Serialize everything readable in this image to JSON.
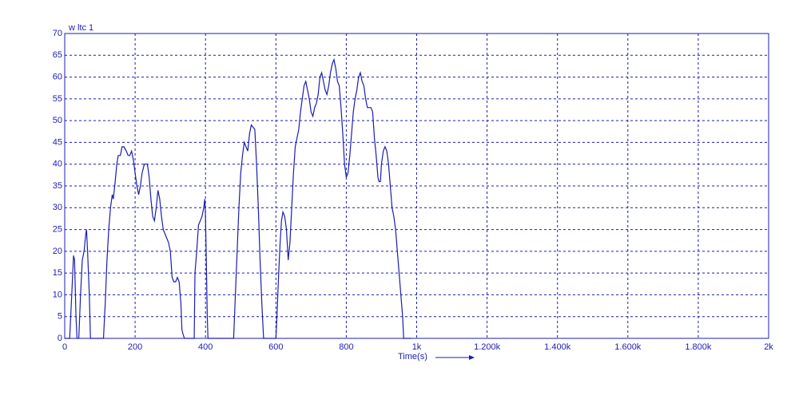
{
  "chart_data": {
    "type": "line",
    "title": "w ltc 1",
    "xlabel": "Time(s)",
    "x": [
      0,
      14,
      20,
      25,
      28,
      32,
      35,
      40,
      45,
      50,
      55,
      60,
      62,
      65,
      70,
      73,
      110,
      115,
      120,
      125,
      130,
      135,
      138,
      142,
      148,
      152,
      158,
      163,
      168,
      175,
      180,
      185,
      190,
      195,
      200,
      205,
      210,
      215,
      220,
      226,
      235,
      240,
      245,
      250,
      255,
      260,
      265,
      270,
      275,
      280,
      285,
      290,
      295,
      300,
      305,
      310,
      315,
      320,
      325,
      330,
      333,
      336,
      340,
      354,
      368,
      370,
      375,
      380,
      385,
      390,
      395,
      398,
      400,
      403,
      405,
      407,
      480,
      485,
      490,
      495,
      500,
      505,
      510,
      515,
      520,
      525,
      530,
      540,
      545,
      550,
      555,
      560,
      565,
      600,
      603,
      608,
      612,
      616,
      620,
      625,
      630,
      635,
      640,
      645,
      650,
      655,
      660,
      665,
      670,
      675,
      680,
      685,
      690,
      695,
      700,
      705,
      710,
      715,
      720,
      725,
      730,
      735,
      740,
      745,
      750,
      755,
      760,
      765,
      770,
      775,
      780,
      785,
      790,
      795,
      800,
      805,
      810,
      815,
      820,
      825,
      830,
      835,
      840,
      845,
      850,
      855,
      860,
      865,
      870,
      875,
      880,
      885,
      890,
      893,
      897,
      900,
      905,
      910,
      915,
      920,
      925,
      930,
      935,
      940,
      945,
      950,
      955,
      960,
      963,
      985
    ],
    "series": [
      {
        "name": "w ltc 1",
        "color": "#1c1cb4",
        "values": [
          0,
          0,
          10,
          19,
          18,
          5,
          0,
          0,
          10,
          18,
          20,
          24,
          25,
          20,
          10,
          0,
          0,
          8,
          18,
          25,
          30,
          33,
          32,
          35,
          40,
          42,
          42,
          44,
          44,
          43,
          42,
          42,
          43,
          41,
          38,
          35,
          33,
          35,
          38,
          40,
          40,
          37,
          32,
          28,
          27,
          30,
          34,
          32,
          28,
          25,
          24,
          23,
          22,
          20,
          14,
          13,
          13,
          14,
          13,
          8,
          2,
          1,
          0,
          0,
          0,
          15,
          20,
          26,
          27,
          28,
          30,
          32,
          28,
          15,
          5,
          0,
          0,
          10,
          20,
          30,
          38,
          42,
          45,
          44,
          43,
          47,
          49,
          48,
          40,
          30,
          18,
          8,
          0,
          0,
          5,
          15,
          22,
          27,
          29,
          28,
          25,
          18,
          22,
          30,
          38,
          44,
          46,
          48,
          52,
          55,
          58,
          59,
          57,
          55,
          52,
          51,
          53,
          54,
          56,
          60,
          61,
          59,
          57,
          56,
          58,
          61,
          63,
          64,
          62,
          59,
          58,
          53,
          47,
          40,
          37,
          38,
          42,
          47,
          52,
          55,
          57,
          60,
          61,
          59,
          58,
          55,
          53,
          53,
          53,
          52,
          46,
          42,
          37,
          36,
          36,
          40,
          43,
          44,
          43,
          40,
          35,
          30,
          28,
          25,
          20,
          15,
          10,
          5,
          0,
          0
        ]
      }
    ],
    "xlim": [
      0,
      2000
    ],
    "ylim": [
      0,
      70
    ],
    "xticks": [
      0,
      200,
      400,
      600,
      800,
      {
        "value": 1000,
        "label": "1k"
      },
      {
        "value": 1200,
        "label": "1.200k"
      },
      {
        "value": 1400,
        "label": "1.400k"
      },
      {
        "value": 1600,
        "label": "1.600k"
      },
      {
        "value": 1800,
        "label": "1.800k"
      },
      {
        "value": 2000,
        "label": "2k"
      }
    ],
    "yticks": [
      0,
      5,
      10,
      15,
      20,
      25,
      30,
      35,
      40,
      45,
      50,
      55,
      60,
      65,
      70
    ],
    "grid": true
  }
}
